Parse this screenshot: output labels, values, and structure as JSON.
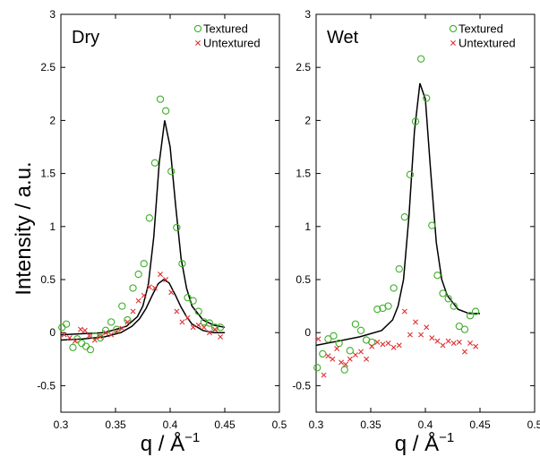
{
  "figure": {
    "ylabel": "Intensity / a.u.",
    "xlabel": "q / Å",
    "xlabel_sup": "−1"
  },
  "chart_data": [
    {
      "type": "scatter",
      "title": "Dry",
      "xlim": [
        0.3,
        0.5
      ],
      "ylim": [
        -0.75,
        3
      ],
      "xticks": [
        "0.3",
        "0.35",
        "0.4",
        "0.45",
        "0.5"
      ],
      "yticks": [
        "-0.5",
        "0",
        "0.5",
        "1",
        "1.5",
        "2",
        "2.5",
        "3"
      ],
      "legend_position": "top-right",
      "series": [
        {
          "name": "Textured",
          "marker": "circle",
          "color": "#3fae2a",
          "x": [
            0.301,
            0.305,
            0.311,
            0.315,
            0.319,
            0.323,
            0.327,
            0.331,
            0.336,
            0.341,
            0.346,
            0.351,
            0.356,
            0.361,
            0.366,
            0.371,
            0.376,
            0.381,
            0.386,
            0.391,
            0.396,
            0.401,
            0.406,
            0.411,
            0.416,
            0.421,
            0.426,
            0.431,
            0.436,
            0.441,
            0.446
          ],
          "y": [
            0.05,
            0.08,
            -0.14,
            -0.06,
            -0.1,
            -0.13,
            -0.16,
            -0.03,
            -0.05,
            0.02,
            0.1,
            0.03,
            0.25,
            0.12,
            0.42,
            0.55,
            0.65,
            1.08,
            1.6,
            2.2,
            2.09,
            1.52,
            0.99,
            0.65,
            0.33,
            0.3,
            0.2,
            0.1,
            0.09,
            0.05,
            0.05
          ]
        },
        {
          "name": "Untextured",
          "marker": "x",
          "color": "#e03030",
          "x": [
            0.303,
            0.308,
            0.313,
            0.318,
            0.322,
            0.326,
            0.331,
            0.336,
            0.341,
            0.346,
            0.351,
            0.356,
            0.361,
            0.366,
            0.371,
            0.376,
            0.381,
            0.386,
            0.391,
            0.396,
            0.401,
            0.406,
            0.411,
            0.416,
            0.421,
            0.426,
            0.431,
            0.436,
            0.441,
            0.446
          ],
          "y": [
            -0.02,
            -0.05,
            -0.08,
            0.03,
            0.02,
            -0.03,
            -0.07,
            -0.04,
            0.0,
            -0.02,
            0.01,
            0.04,
            0.1,
            0.2,
            0.3,
            0.35,
            0.43,
            0.42,
            0.55,
            0.5,
            0.38,
            0.2,
            0.1,
            0.14,
            0.05,
            0.07,
            0.05,
            0.0,
            0.03,
            -0.04
          ]
        }
      ],
      "fit_lines": [
        {
          "x": [
            0.3,
            0.32,
            0.34,
            0.36,
            0.37,
            0.375,
            0.38,
            0.385,
            0.39,
            0.395,
            0.4,
            0.405,
            0.41,
            0.415,
            0.42,
            0.43,
            0.44,
            0.45
          ],
          "y": [
            -0.02,
            -0.01,
            0.0,
            0.06,
            0.15,
            0.25,
            0.45,
            0.9,
            1.6,
            2.0,
            1.75,
            1.2,
            0.7,
            0.42,
            0.25,
            0.12,
            0.07,
            0.05
          ]
        },
        {
          "x": [
            0.3,
            0.32,
            0.34,
            0.355,
            0.365,
            0.372,
            0.378,
            0.384,
            0.389,
            0.394,
            0.399,
            0.405,
            0.41,
            0.415,
            0.42,
            0.43,
            0.44,
            0.45
          ],
          "y": [
            -0.07,
            -0.06,
            -0.04,
            0.0,
            0.06,
            0.13,
            0.23,
            0.36,
            0.46,
            0.5,
            0.47,
            0.35,
            0.24,
            0.15,
            0.08,
            0.02,
            0.0,
            0.0
          ]
        }
      ]
    },
    {
      "type": "scatter",
      "title": "Wet",
      "xlim": [
        0.3,
        0.5
      ],
      "ylim": [
        -0.75,
        3
      ],
      "xticks": [
        "0.3",
        "0.35",
        "0.4",
        "0.45",
        "0.5"
      ],
      "yticks": [
        "-0.5",
        "0",
        "0.5",
        "1",
        "1.5",
        "2",
        "2.5",
        "3"
      ],
      "legend_position": "top-right",
      "series": [
        {
          "name": "Textured",
          "marker": "circle",
          "color": "#3fae2a",
          "x": [
            0.301,
            0.306,
            0.311,
            0.316,
            0.321,
            0.326,
            0.331,
            0.336,
            0.341,
            0.346,
            0.351,
            0.356,
            0.361,
            0.366,
            0.371,
            0.376,
            0.381,
            0.386,
            0.391,
            0.396,
            0.401,
            0.406,
            0.411,
            0.416,
            0.421,
            0.426,
            0.431,
            0.436,
            0.441,
            0.446
          ],
          "y": [
            -0.33,
            -0.2,
            -0.06,
            -0.03,
            -0.1,
            -0.35,
            -0.17,
            0.08,
            0.02,
            -0.07,
            -0.09,
            0.22,
            0.23,
            0.25,
            0.42,
            0.6,
            1.09,
            1.49,
            1.99,
            2.58,
            2.21,
            1.01,
            0.54,
            0.37,
            0.32,
            0.25,
            0.06,
            0.03,
            0.16,
            0.2
          ]
        },
        {
          "name": "Untextured",
          "marker": "x",
          "color": "#e03030",
          "x": [
            0.302,
            0.307,
            0.311,
            0.315,
            0.319,
            0.323,
            0.327,
            0.331,
            0.336,
            0.341,
            0.346,
            0.351,
            0.356,
            0.361,
            0.366,
            0.371,
            0.376,
            0.381,
            0.386,
            0.391,
            0.396,
            0.401,
            0.406,
            0.411,
            0.416,
            0.421,
            0.426,
            0.431,
            0.436,
            0.441,
            0.446
          ],
          "y": [
            -0.06,
            -0.4,
            -0.22,
            -0.25,
            -0.15,
            -0.28,
            -0.3,
            -0.25,
            -0.21,
            -0.18,
            -0.25,
            -0.13,
            -0.09,
            -0.11,
            -0.1,
            -0.14,
            -0.12,
            0.2,
            -0.02,
            0.1,
            -0.02,
            0.05,
            -0.05,
            -0.08,
            -0.12,
            -0.08,
            -0.1,
            -0.09,
            -0.18,
            -0.1,
            -0.13
          ]
        }
      ],
      "fit_lines": [
        {
          "x": [
            0.3,
            0.32,
            0.34,
            0.36,
            0.37,
            0.375,
            0.38,
            0.385,
            0.39,
            0.395,
            0.4,
            0.405,
            0.41,
            0.415,
            0.42,
            0.43,
            0.44,
            0.45
          ],
          "y": [
            -0.12,
            -0.08,
            -0.04,
            0.02,
            0.12,
            0.25,
            0.5,
            1.1,
            1.9,
            2.35,
            2.2,
            1.5,
            0.85,
            0.5,
            0.35,
            0.22,
            0.18,
            0.18
          ]
        }
      ]
    }
  ]
}
